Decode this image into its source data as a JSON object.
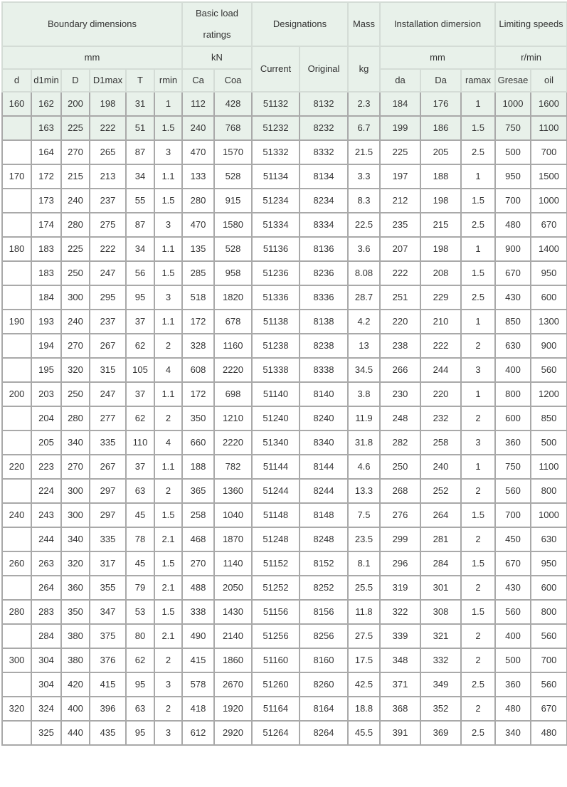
{
  "header": {
    "groups": [
      "Boundary dimensions",
      "Basic load ratings",
      "Designations",
      "Mass",
      "Installation dimersion",
      "Limiting speeds"
    ],
    "units": {
      "boundary": "mm",
      "load": "kN",
      "mass": "kg",
      "installation": "mm",
      "speeds": "r/min"
    },
    "designation_columns": [
      "Current",
      "Original"
    ],
    "columns": [
      "d",
      "d1min",
      "D",
      "D1max",
      "T",
      "rmin",
      "Ca",
      "Coa",
      "da",
      "Da",
      "ramax",
      "Gresae",
      "oil"
    ]
  },
  "colors": {
    "header_bg": "#e8f1ea",
    "border": "#a9a9a9"
  },
  "rows": [
    [
      "160",
      "162",
      "200",
      "198",
      "31",
      "1",
      "112",
      "428",
      "51132",
      "8132",
      "2.3",
      "184",
      "176",
      "1",
      "1000",
      "1600"
    ],
    [
      "",
      "163",
      "225",
      "222",
      "51",
      "1.5",
      "240",
      "768",
      "51232",
      "8232",
      "6.7",
      "199",
      "186",
      "1.5",
      "750",
      "1100"
    ],
    [
      "",
      "164",
      "270",
      "265",
      "87",
      "3",
      "470",
      "1570",
      "51332",
      "8332",
      "21.5",
      "225",
      "205",
      "2.5",
      "500",
      "700"
    ],
    [
      "170",
      "172",
      "215",
      "213",
      "34",
      "1.1",
      "133",
      "528",
      "51134",
      "8134",
      "3.3",
      "197",
      "188",
      "1",
      "950",
      "1500"
    ],
    [
      "",
      "173",
      "240",
      "237",
      "55",
      "1.5",
      "280",
      "915",
      "51234",
      "8234",
      "8.3",
      "212",
      "198",
      "1.5",
      "700",
      "1000"
    ],
    [
      "",
      "174",
      "280",
      "275",
      "87",
      "3",
      "470",
      "1580",
      "51334",
      "8334",
      "22.5",
      "235",
      "215",
      "2.5",
      "480",
      "670"
    ],
    [
      "180",
      "183",
      "225",
      "222",
      "34",
      "1.1",
      "135",
      "528",
      "51136",
      "8136",
      "3.6",
      "207",
      "198",
      "1",
      "900",
      "1400"
    ],
    [
      "",
      "183",
      "250",
      "247",
      "56",
      "1.5",
      "285",
      "958",
      "51236",
      "8236",
      "8.08",
      "222",
      "208",
      "1.5",
      "670",
      "950"
    ],
    [
      "",
      "184",
      "300",
      "295",
      "95",
      "3",
      "518",
      "1820",
      "51336",
      "8336",
      "28.7",
      "251",
      "229",
      "2.5",
      "430",
      "600"
    ],
    [
      "190",
      "193",
      "240",
      "237",
      "37",
      "1.1",
      "172",
      "678",
      "51138",
      "8138",
      "4.2",
      "220",
      "210",
      "1",
      "850",
      "1300"
    ],
    [
      "",
      "194",
      "270",
      "267",
      "62",
      "2",
      "328",
      "1160",
      "51238",
      "8238",
      "13",
      "238",
      "222",
      "2",
      "630",
      "900"
    ],
    [
      "",
      "195",
      "320",
      "315",
      "105",
      "4",
      "608",
      "2220",
      "51338",
      "8338",
      "34.5",
      "266",
      "244",
      "3",
      "400",
      "560"
    ],
    [
      "200",
      "203",
      "250",
      "247",
      "37",
      "1.1",
      "172",
      "698",
      "51140",
      "8140",
      "3.8",
      "230",
      "220",
      "1",
      "800",
      "1200"
    ],
    [
      "",
      "204",
      "280",
      "277",
      "62",
      "2",
      "350",
      "1210",
      "51240",
      "8240",
      "11.9",
      "248",
      "232",
      "2",
      "600",
      "850"
    ],
    [
      "",
      "205",
      "340",
      "335",
      "110",
      "4",
      "660",
      "2220",
      "51340",
      "8340",
      "31.8",
      "282",
      "258",
      "3",
      "360",
      "500"
    ],
    [
      "220",
      "223",
      "270",
      "267",
      "37",
      "1.1",
      "188",
      "782",
      "51144",
      "8144",
      "4.6",
      "250",
      "240",
      "1",
      "750",
      "1100"
    ],
    [
      "",
      "224",
      "300",
      "297",
      "63",
      "2",
      "365",
      "1360",
      "51244",
      "8244",
      "13.3",
      "268",
      "252",
      "2",
      "560",
      "800"
    ],
    [
      "240",
      "243",
      "300",
      "297",
      "45",
      "1.5",
      "258",
      "1040",
      "51148",
      "8148",
      "7.5",
      "276",
      "264",
      "1.5",
      "700",
      "1000"
    ],
    [
      "",
      "244",
      "340",
      "335",
      "78",
      "2.1",
      "468",
      "1870",
      "51248",
      "8248",
      "23.5",
      "299",
      "281",
      "2",
      "450",
      "630"
    ],
    [
      "260",
      "263",
      "320",
      "317",
      "45",
      "1.5",
      "270",
      "1140",
      "51152",
      "8152",
      "8.1",
      "296",
      "284",
      "1.5",
      "670",
      "950"
    ],
    [
      "",
      "264",
      "360",
      "355",
      "79",
      "2.1",
      "488",
      "2050",
      "51252",
      "8252",
      "25.5",
      "319",
      "301",
      "2",
      "430",
      "600"
    ],
    [
      "280",
      "283",
      "350",
      "347",
      "53",
      "1.5",
      "338",
      "1430",
      "51156",
      "8156",
      "11.8",
      "322",
      "308",
      "1.5",
      "560",
      "800"
    ],
    [
      "",
      "284",
      "380",
      "375",
      "80",
      "2.1",
      "490",
      "2140",
      "51256",
      "8256",
      "27.5",
      "339",
      "321",
      "2",
      "400",
      "560"
    ],
    [
      "300",
      "304",
      "380",
      "376",
      "62",
      "2",
      "415",
      "1860",
      "51160",
      "8160",
      "17.5",
      "348",
      "332",
      "2",
      "500",
      "700"
    ],
    [
      "",
      "304",
      "420",
      "415",
      "95",
      "3",
      "578",
      "2670",
      "51260",
      "8260",
      "42.5",
      "371",
      "349",
      "2.5",
      "360",
      "560"
    ],
    [
      "320",
      "324",
      "400",
      "396",
      "63",
      "2",
      "418",
      "1920",
      "51164",
      "8164",
      "18.8",
      "368",
      "352",
      "2",
      "480",
      "670"
    ],
    [
      "",
      "325",
      "440",
      "435",
      "95",
      "3",
      "612",
      "2920",
      "51264",
      "8264",
      "45.5",
      "391",
      "369",
      "2.5",
      "340",
      "480"
    ]
  ],
  "highlighted_rows": [
    0,
    1
  ]
}
